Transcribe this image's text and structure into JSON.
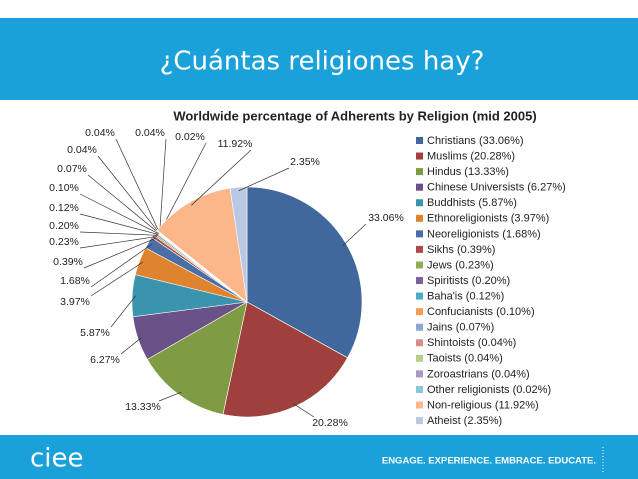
{
  "slide": {
    "title": "¿Cuántas religiones hay?",
    "logo": "ciee",
    "tagline": "ENGAGE. EXPERIENCE. EMBRACE. EDUCATE."
  },
  "chart_data": {
    "type": "pie",
    "title": "Worldwide percentage of Adherents by Religion (mid 2005)",
    "categories": [
      "Christians (33.06%)",
      "Muslims (20.28%)",
      "Hindus (13.33%)",
      "Chinese Universists (6.27%)",
      "Buddhists (5.87%)",
      "Ethnoreligionists (3.97%)",
      "Neoreligionists (1.68%)",
      "Sikhs (0.39%)",
      "Jews (0.23%)",
      "Spiritists (0.20%)",
      "Baha'is (0.12%)",
      "Confucianists (0.10%)",
      "Jains (0.07%)",
      "Shintoists (0.04%)",
      "Taoists (0.04%)",
      "Zoroastrians (0.04%)",
      "Other religionists (0.02%)",
      "Non-religious (11.92%)",
      "Atheist (2.35%)"
    ],
    "values": [
      33.06,
      20.28,
      13.33,
      6.27,
      5.87,
      3.97,
      1.68,
      0.39,
      0.23,
      0.2,
      0.12,
      0.1,
      0.07,
      0.04,
      0.04,
      0.04,
      0.02,
      11.92,
      2.35
    ],
    "value_labels": [
      "33.06%",
      "20.28%",
      "13.33%",
      "6.27%",
      "5.87%",
      "3.97%",
      "1.68%",
      "0.39%",
      "0.23%",
      "0.20%",
      "0.12%",
      "0.10%",
      "0.07%",
      "0.04%",
      "0.04%",
      "0.04%",
      "0.02%",
      "11.92%",
      "2.35%"
    ],
    "colors": [
      "#41689c",
      "#a0403c",
      "#7f9b43",
      "#6a5187",
      "#3a94ad",
      "#e0832f",
      "#4a6fa5",
      "#ae4a47",
      "#8fae4f",
      "#7a62a0",
      "#4aacc6",
      "#f59d56",
      "#8aa9d8",
      "#d98d8b",
      "#b8cf8a",
      "#a997c6",
      "#89c6dc",
      "#fbb689",
      "#b9c9e3"
    ]
  }
}
